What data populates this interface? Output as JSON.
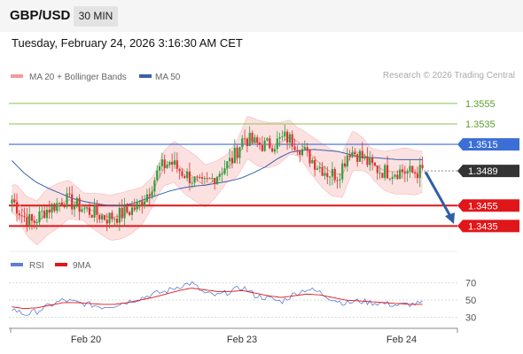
{
  "header": {
    "symbol": "GBP/USD",
    "timeframe": "30 MIN"
  },
  "timestamp": "Tuesday, February 24, 2026 3:16:30 AM CET",
  "copyright": "Research © 2026 Trading Central",
  "colors": {
    "up": "#2e9e3e",
    "down": "#e03030",
    "bollinger_fill": "#fbd4d4",
    "ma20": "#f29a9a",
    "ma50": "#3a62a8",
    "resistance_green": "#8cc152",
    "pivot_blue": "#3b6fd6",
    "support_red": "#e0161a",
    "current_price": "#333333",
    "arrow": "#2f5ea8",
    "rsi": "#5b7fd4",
    "rsi_ma": "#e0161a"
  },
  "chart_data": [
    {
      "type": "candlestick",
      "legend": [
        "MA 20 + Bollinger Bands",
        "MA 50"
      ],
      "ylim": [
        1.3418,
        1.3574
      ],
      "x_ticks": [
        "Feb 20",
        "Feb 23",
        "Feb 24"
      ],
      "levels": [
        {
          "value": 1.3555,
          "label": "1.3555",
          "kind": "resistance"
        },
        {
          "value": 1.3535,
          "label": "1.3535",
          "kind": "resistance"
        },
        {
          "value": 1.3515,
          "label": "1.3515",
          "kind": "pivot"
        },
        {
          "value": 1.3489,
          "label": "1.3489",
          "kind": "current"
        },
        {
          "value": 1.3455,
          "label": "1.3455",
          "kind": "support"
        },
        {
          "value": 1.3435,
          "label": "1.3435",
          "kind": "support"
        }
      ],
      "forecast_arrow": {
        "from": 1.3488,
        "to": 1.3437
      },
      "price_path": [
        1.3461,
        1.3445,
        1.3438,
        1.3449,
        1.3455,
        1.3461,
        1.3456,
        1.3451,
        1.3447,
        1.3443,
        1.3445,
        1.3449,
        1.3455,
        1.3469,
        1.3491,
        1.3498,
        1.3489,
        1.3482,
        1.3474,
        1.3481,
        1.3491,
        1.3501,
        1.3522,
        1.3516,
        1.3514,
        1.3516,
        1.3522,
        1.3516,
        1.3505,
        1.3495,
        1.3487,
        1.3485,
        1.3509,
        1.3505,
        1.3495,
        1.3489,
        1.3488,
        1.3489,
        1.3487,
        1.3489
      ],
      "bb_width": 0.0036,
      "ma50_path": [
        1.3499,
        1.3487,
        1.3478,
        1.3472,
        1.3467,
        1.3462,
        1.3459,
        1.3457,
        1.3455,
        1.3455,
        1.3457,
        1.3461,
        1.3465,
        1.3469,
        1.3472,
        1.3474,
        1.3475,
        1.3477,
        1.3479,
        1.3482,
        1.3487,
        1.3493,
        1.3501,
        1.3507,
        1.3509,
        1.351,
        1.3509,
        1.3508,
        1.3505,
        1.3502,
        1.3502,
        1.3501,
        1.35,
        1.35,
        1.35
      ],
      "candle_count": 165
    },
    {
      "type": "line",
      "legend": [
        "RSI",
        "9MA"
      ],
      "ylim": [
        20,
        78
      ],
      "y_ticks": [
        30,
        50,
        70
      ],
      "rsi_path": [
        40,
        33,
        37,
        44,
        50,
        47,
        45,
        42,
        44,
        48,
        52,
        57,
        60,
        66,
        70,
        58,
        55,
        60,
        65,
        55,
        52,
        48,
        57,
        63,
        59,
        51,
        46,
        49,
        47,
        46,
        44,
        45,
        46
      ],
      "rsi_ma_path": [
        42,
        40,
        41,
        44,
        47,
        47,
        46,
        45,
        45,
        47,
        50,
        53,
        57,
        61,
        64,
        62,
        60,
        60,
        61,
        58,
        55,
        53,
        55,
        57,
        56,
        53,
        50,
        49,
        48,
        47,
        46,
        45,
        45
      ]
    }
  ]
}
